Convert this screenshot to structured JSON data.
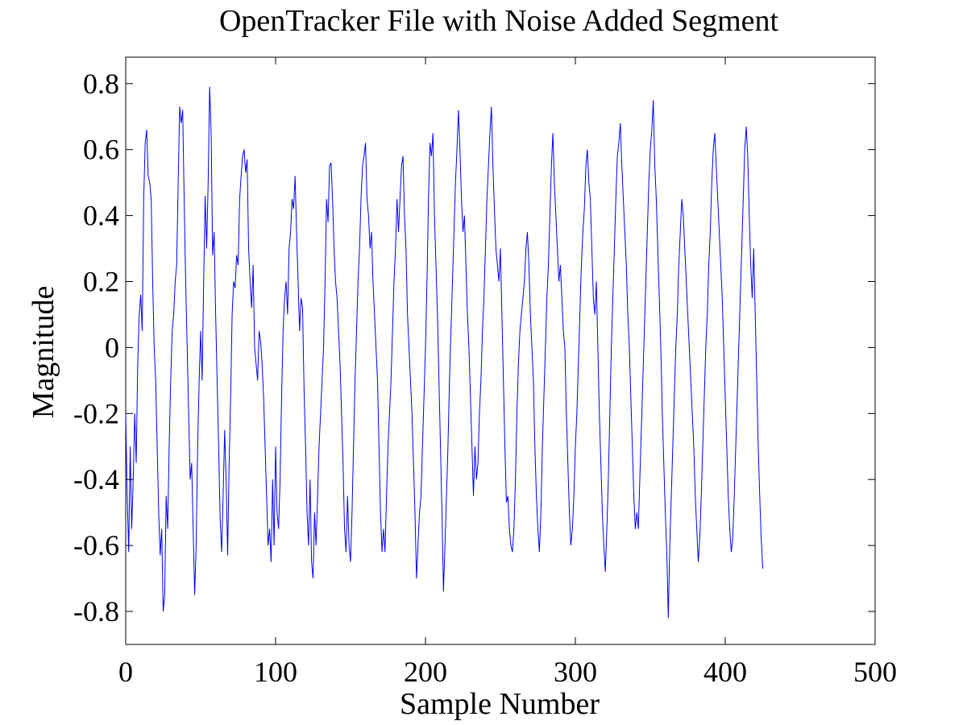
{
  "chart_data": {
    "type": "line",
    "title": "OpenTracker File with Noise Added Segment",
    "xlabel": "Sample Number",
    "ylabel": "Magnitude",
    "xlim": [
      0,
      500
    ],
    "ylim": [
      -0.9,
      0.88
    ],
    "x_ticks": [
      0,
      100,
      200,
      300,
      400,
      500
    ],
    "x_tick_labels": [
      "0",
      "100",
      "200",
      "300",
      "400",
      "500"
    ],
    "y_ticks": [
      -0.8,
      -0.6,
      -0.4,
      -0.2,
      0,
      0.2,
      0.4,
      0.6,
      0.8
    ],
    "y_tick_labels": [
      "-0.8",
      "-0.6",
      "-0.4",
      "-0.2",
      "0",
      "0.2",
      "0.4",
      "0.6",
      "0.8"
    ],
    "grid": false,
    "legend": "none",
    "series": [
      {
        "color": "#0000ff",
        "x_start": 0,
        "x_step": 1,
        "y": [
          -0.2,
          -0.45,
          -0.62,
          -0.3,
          -0.55,
          -0.4,
          -0.2,
          -0.35,
          -0.05,
          0.1,
          0.16,
          0.05,
          0.45,
          0.62,
          0.66,
          0.52,
          0.5,
          0.45,
          0.2,
          0.0,
          -0.1,
          -0.3,
          -0.5,
          -0.63,
          -0.55,
          -0.8,
          -0.75,
          -0.45,
          -0.55,
          -0.3,
          -0.1,
          0.05,
          0.1,
          0.2,
          0.25,
          0.5,
          0.73,
          0.68,
          0.72,
          0.45,
          0.2,
          0.0,
          -0.2,
          -0.4,
          -0.35,
          -0.55,
          -0.75,
          -0.6,
          -0.3,
          -0.1,
          0.05,
          -0.1,
          0.2,
          0.46,
          0.3,
          0.5,
          0.79,
          0.65,
          0.28,
          0.35,
          0.1,
          -0.1,
          -0.3,
          -0.52,
          -0.62,
          -0.45,
          -0.25,
          -0.4,
          -0.63,
          -0.35,
          -0.15,
          0.1,
          0.2,
          0.18,
          0.28,
          0.25,
          0.45,
          0.52,
          0.58,
          0.6,
          0.53,
          0.57,
          0.3,
          0.2,
          0.12,
          0.25,
          0.0,
          -0.05,
          -0.1,
          0.05,
          0.02,
          -0.05,
          -0.15,
          -0.3,
          -0.45,
          -0.6,
          -0.55,
          -0.65,
          -0.4,
          -0.6,
          -0.3,
          -0.5,
          -0.55,
          -0.4,
          -0.15,
          0.05,
          0.15,
          0.2,
          0.1,
          0.3,
          0.35,
          0.45,
          0.42,
          0.52,
          0.35,
          0.2,
          0.05,
          0.15,
          0.12,
          -0.13,
          -0.3,
          -0.5,
          -0.6,
          -0.4,
          -0.65,
          -0.7,
          -0.5,
          -0.6,
          -0.45,
          -0.3,
          -0.2,
          -0.1,
          0.0,
          0.2,
          0.45,
          0.38,
          0.55,
          0.56,
          0.45,
          0.3,
          0.2,
          0.15,
          0.05,
          -0.05,
          -0.2,
          -0.35,
          -0.55,
          -0.62,
          -0.45,
          -0.6,
          -0.65,
          -0.5,
          -0.3,
          -0.1,
          0.05,
          0.2,
          0.3,
          0.45,
          0.55,
          0.58,
          0.62,
          0.45,
          0.4,
          0.3,
          0.35,
          0.2,
          0.1,
          0.0,
          -0.1,
          -0.3,
          -0.5,
          -0.62,
          -0.55,
          -0.62,
          -0.45,
          -0.3,
          -0.2,
          -0.1,
          0.05,
          0.2,
          0.3,
          0.45,
          0.35,
          0.45,
          0.55,
          0.58,
          0.4,
          0.3,
          0.1,
          0.0,
          -0.1,
          -0.2,
          -0.35,
          -0.5,
          -0.7,
          -0.6,
          -0.5,
          -0.45,
          -0.3,
          -0.15,
          0.0,
          0.2,
          0.45,
          0.62,
          0.58,
          0.65,
          0.4,
          0.25,
          0.1,
          -0.1,
          -0.3,
          -0.5,
          -0.74,
          -0.6,
          -0.45,
          -0.3,
          -0.1,
          0.05,
          0.2,
          0.35,
          0.5,
          0.6,
          0.72,
          0.6,
          0.45,
          0.35,
          0.4,
          0.25,
          0.1,
          0.0,
          -0.15,
          -0.3,
          -0.45,
          -0.3,
          -0.4,
          -0.35,
          -0.2,
          -0.1,
          0.05,
          0.15,
          0.3,
          0.45,
          0.55,
          0.65,
          0.73,
          0.55,
          0.42,
          0.3,
          0.25,
          0.2,
          0.3,
          0.1,
          -0.1,
          -0.3,
          -0.47,
          -0.45,
          -0.55,
          -0.6,
          -0.62,
          -0.55,
          -0.4,
          -0.2,
          -0.05,
          0.05,
          0.1,
          0.15,
          0.2,
          0.3,
          0.35,
          0.25,
          0.1,
          0.0,
          -0.1,
          -0.3,
          -0.45,
          -0.55,
          -0.62,
          -0.5,
          -0.3,
          -0.15,
          0.0,
          0.15,
          0.25,
          0.4,
          0.55,
          0.65,
          0.5,
          0.4,
          0.3,
          0.2,
          0.25,
          0.15,
          0.05,
          0.0,
          -0.2,
          -0.35,
          -0.5,
          -0.6,
          -0.55,
          -0.45,
          -0.3,
          -0.2,
          -0.05,
          0.1,
          0.25,
          0.35,
          0.42,
          0.55,
          0.6,
          0.5,
          0.45,
          0.3,
          0.15,
          0.1,
          0.2,
          0.0,
          -0.2,
          -0.35,
          -0.5,
          -0.6,
          -0.68,
          -0.55,
          -0.4,
          -0.2,
          0.0,
          0.15,
          0.3,
          0.45,
          0.58,
          0.62,
          0.68,
          0.55,
          0.45,
          0.35,
          0.25,
          0.1,
          0.0,
          -0.15,
          -0.3,
          -0.45,
          -0.55,
          -0.5,
          -0.55,
          -0.4,
          -0.25,
          -0.1,
          0.05,
          0.2,
          0.35,
          0.5,
          0.6,
          0.66,
          0.75,
          0.55,
          0.45,
          0.3,
          0.15,
          0.0,
          -0.2,
          -0.35,
          -0.5,
          -0.62,
          -0.82,
          -0.6,
          -0.45,
          -0.3,
          -0.15,
          0.0,
          0.1,
          0.25,
          0.35,
          0.45,
          0.4,
          0.3,
          0.2,
          0.1,
          0.0,
          -0.1,
          -0.2,
          -0.3,
          -0.45,
          -0.55,
          -0.65,
          -0.58,
          -0.45,
          -0.3,
          -0.15,
          0.0,
          0.1,
          0.25,
          0.35,
          0.5,
          0.6,
          0.65,
          0.55,
          0.45,
          0.35,
          0.25,
          0.15,
          0.0,
          -0.15,
          -0.3,
          -0.45,
          -0.55,
          -0.62,
          -0.58,
          -0.45,
          -0.3,
          -0.15,
          0.0,
          0.15,
          0.3,
          0.45,
          0.6,
          0.67,
          0.58,
          0.4,
          0.25,
          0.15,
          0.3,
          0.1,
          -0.1,
          -0.3,
          -0.45,
          -0.58,
          -0.67
        ]
      }
    ]
  }
}
